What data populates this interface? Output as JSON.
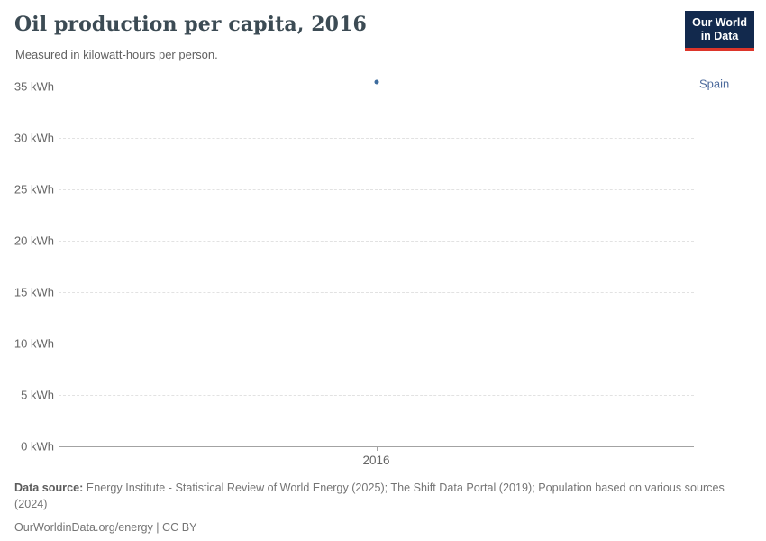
{
  "header": {
    "title": "Oil production per capita, 2016",
    "subtitle": "Measured in kilowatt-hours per person.",
    "logo_line1": "Our World",
    "logo_line2": "in Data"
  },
  "chart_data": {
    "type": "scatter",
    "title": "Oil production per capita, 2016",
    "subtitle": "Measured in kilowatt-hours per person.",
    "xlabel": "",
    "ylabel": "kilowatt-hours per person",
    "x_ticks": [
      "2016"
    ],
    "y_ticks": [
      0,
      5,
      10,
      15,
      20,
      25,
      30,
      35
    ],
    "y_tick_labels": [
      "0 kWh",
      "5 kWh",
      "10 kWh",
      "15 kWh",
      "20 kWh",
      "25 kWh",
      "30 kWh",
      "35 kWh"
    ],
    "ylim": [
      0,
      35
    ],
    "grid": "horizontal-dashed",
    "legend_position": "right-of-point",
    "series": [
      {
        "name": "Spain",
        "x": [
          "2016"
        ],
        "values": [
          35.4
        ],
        "color": "#3d6c9e"
      }
    ]
  },
  "footer": {
    "data_source_label": "Data source:",
    "data_source_text": " Energy Institute - Statistical Review of World Energy (2025); The Shift Data Portal (2019); Population based on various sources (2024)",
    "attribution": "OurWorldinData.org/energy | CC BY"
  },
  "colors": {
    "accent_series": "#3d6c9e",
    "entity_label": "#4c6a9c",
    "logo_background": "#12294d",
    "logo_stripe": "#dd352a",
    "gridline": "#e2e2e2",
    "axis_line": "#a3a3a3",
    "tick_text": "#666666"
  }
}
